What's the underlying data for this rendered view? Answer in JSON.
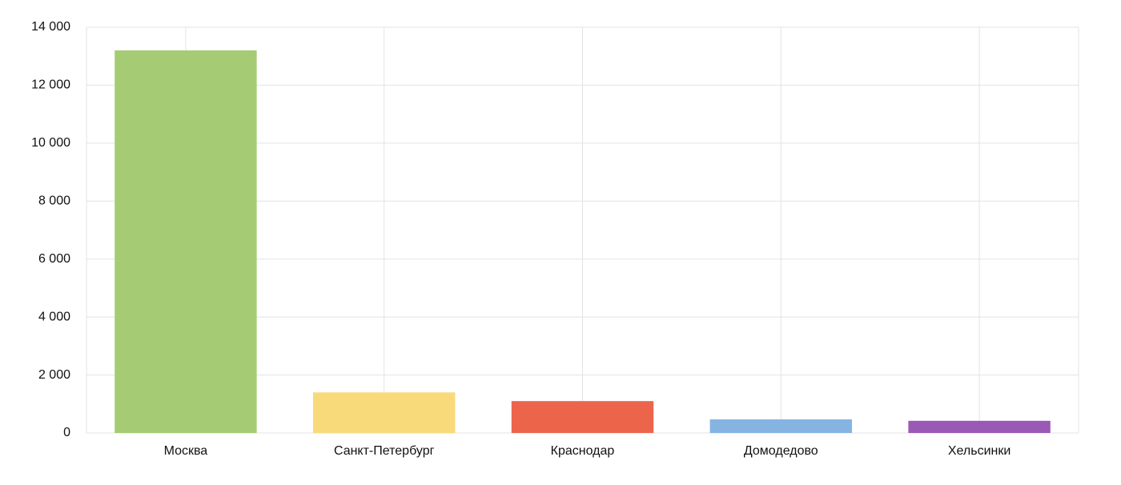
{
  "chart_data": {
    "type": "bar",
    "categories": [
      "Москва",
      "Санкт-Петербург",
      "Краснодар",
      "Домодедово",
      "Хельсинки"
    ],
    "values": [
      13200,
      1400,
      1100,
      470,
      420
    ],
    "colors": [
      "#a5cc74",
      "#f9da7a",
      "#ec654b",
      "#85b4e3",
      "#9b59b6"
    ],
    "ylim": [
      0,
      14000
    ],
    "yticks": [
      0,
      {
        "value": 2000,
        "label": "2 000"
      },
      {
        "value": 4000,
        "label": "4 000"
      },
      {
        "value": 6000,
        "label": "6 000"
      },
      {
        "value": 8000,
        "label": "8 000"
      },
      {
        "value": 10000,
        "label": "10 000"
      },
      {
        "value": 12000,
        "label": "12 000"
      },
      {
        "value": 14000,
        "label": "14 000"
      }
    ],
    "grid": true
  }
}
